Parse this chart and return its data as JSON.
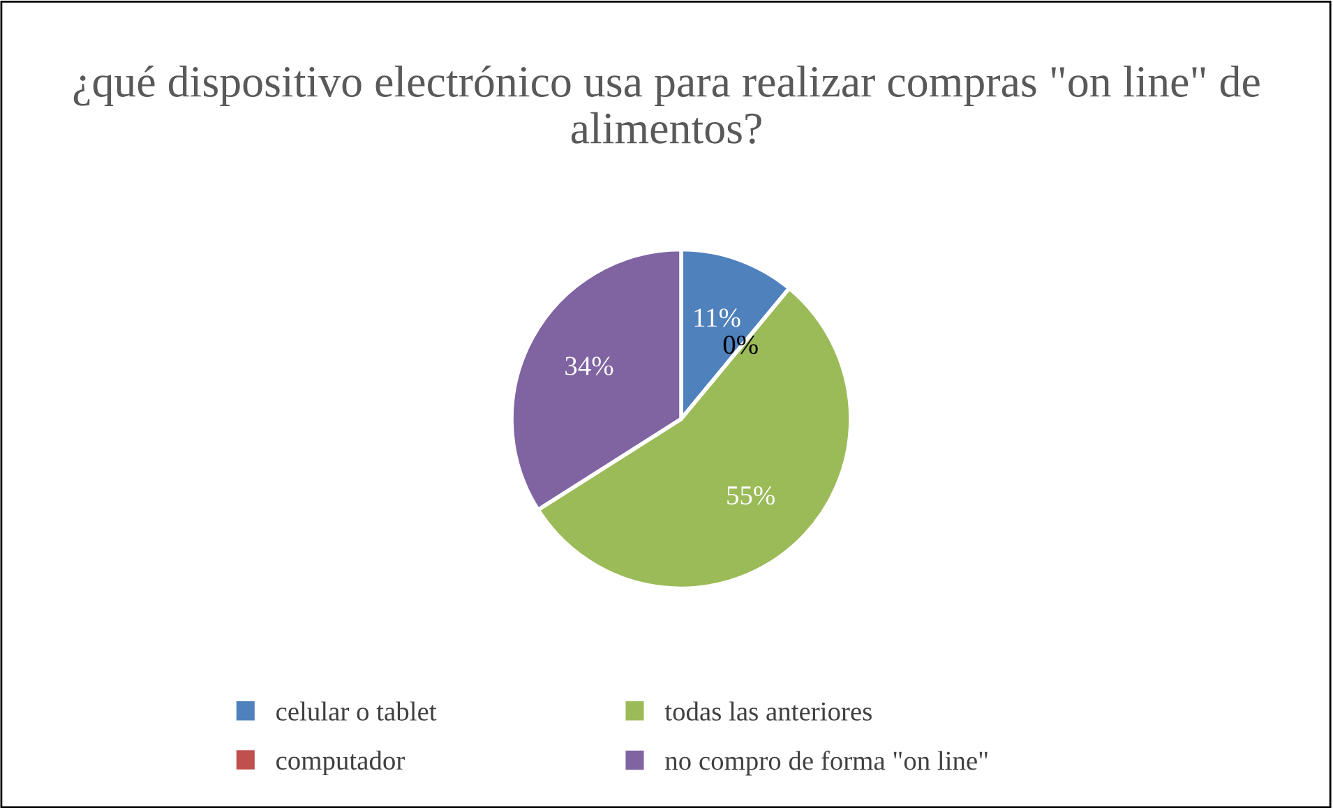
{
  "chart_data": {
    "type": "pie",
    "title": "¿qué dispositivo electrónico usa para realizar compras \"on line\" de alimentos?",
    "categories": [
      "celular o tablet",
      "computador",
      "todas las anteriores",
      "no compro de forma \"on line\""
    ],
    "values": [
      11,
      0,
      55,
      34
    ],
    "value_labels": [
      "11%",
      "0%",
      "55%",
      "34%"
    ],
    "colors": [
      "#4f81bd",
      "#c0504d",
      "#9bbb59",
      "#8064a2"
    ],
    "legend": "bottom"
  }
}
